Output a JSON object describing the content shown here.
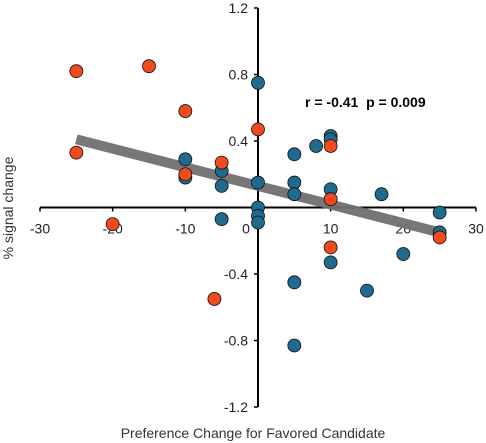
{
  "chart_data": {
    "type": "scatter",
    "title": "",
    "xlabel": "Preference Change for Favored Candidate",
    "ylabel": "% signal change",
    "xlim": [
      -30,
      30
    ],
    "ylim": [
      -1.2,
      1.2
    ],
    "x_ticks": [
      -30,
      -20,
      -10,
      0,
      10,
      20,
      30
    ],
    "y_ticks": [
      1.2,
      0.8,
      0.4,
      -0.4,
      -0.8,
      -1.2
    ],
    "x_tick_labels": [
      "-30",
      "-20",
      "-10",
      "0",
      "10",
      "20",
      "30"
    ],
    "y_tick_labels": [
      "1.2",
      "0.8",
      "0.4",
      "-0.4",
      "-0.8",
      "-1.2"
    ],
    "annotation": "r = -0.41  p = 0.009",
    "grid": false,
    "colors": {
      "blue": "#1f6b8f",
      "orange": "#f04a1e",
      "regression": "#707070",
      "axis": "#000000"
    },
    "series": [
      {
        "color_key": "blue",
        "points": [
          [
            0,
            0.75
          ],
          [
            -10,
            0.29
          ],
          [
            -10,
            0.18
          ],
          [
            -5,
            0.22
          ],
          [
            -5,
            0.13
          ],
          [
            -5,
            -0.07
          ],
          [
            0,
            0.15
          ],
          [
            0,
            0.0
          ],
          [
            0,
            -0.05
          ],
          [
            0,
            -0.09
          ],
          [
            5,
            0.32
          ],
          [
            5,
            0.15
          ],
          [
            5,
            0.08
          ],
          [
            5,
            -0.45
          ],
          [
            5,
            -0.83
          ],
          [
            8,
            0.37
          ],
          [
            10,
            0.43
          ],
          [
            10,
            0.41
          ],
          [
            10,
            0.11
          ],
          [
            10,
            -0.33
          ],
          [
            15,
            -0.5
          ],
          [
            17,
            0.08
          ],
          [
            20,
            -0.28
          ],
          [
            25,
            -0.03
          ],
          [
            25,
            -0.15
          ]
        ]
      },
      {
        "color_key": "orange",
        "points": [
          [
            -25,
            0.82
          ],
          [
            -25,
            0.33
          ],
          [
            -20,
            -0.1
          ],
          [
            -15,
            0.85
          ],
          [
            -10,
            0.58
          ],
          [
            -10,
            0.2
          ],
          [
            -5,
            0.27
          ],
          [
            -6,
            -0.55
          ],
          [
            0,
            0.47
          ],
          [
            10,
            0.37
          ],
          [
            10,
            0.05
          ],
          [
            10,
            -0.24
          ],
          [
            25,
            -0.18
          ]
        ]
      }
    ],
    "regression_line": {
      "x": [
        -25,
        25
      ],
      "y": [
        0.41,
        -0.15
      ]
    }
  }
}
